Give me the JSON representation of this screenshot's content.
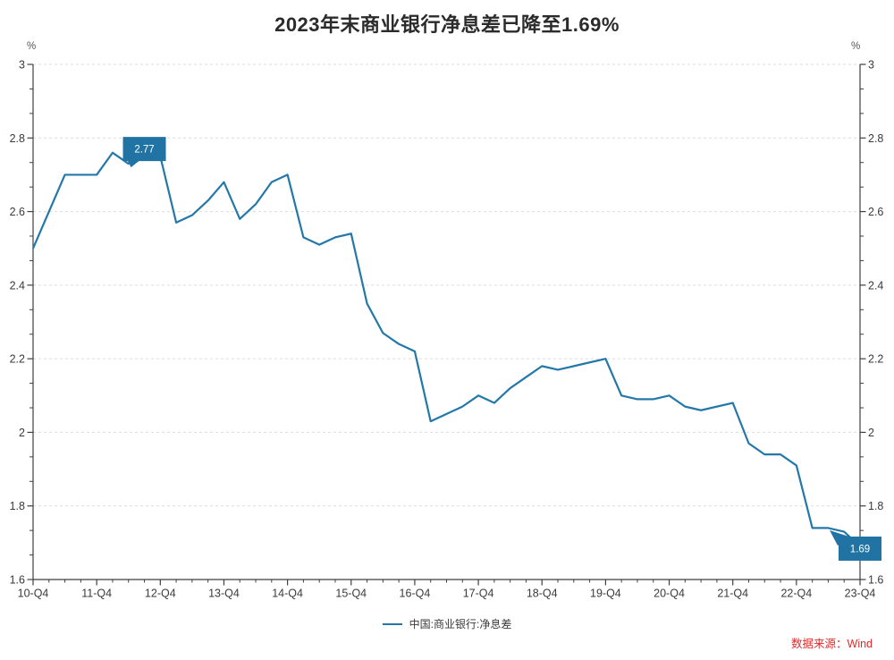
{
  "header": {
    "title": "2023年末商业银行净息差已降至1.69%"
  },
  "axes": {
    "y_unit_left": "%",
    "y_unit_right": "%"
  },
  "legend": {
    "label": "中国:商业银行:净息差"
  },
  "footer": {
    "source": "数据来源：Wind"
  },
  "colors": {
    "line": "#2478a9",
    "annotation_box": "#2173a4",
    "annotation_text": "#ffffff",
    "grid": "#dcdcdc",
    "axis": "#3f3f3f",
    "tick_label": "#3a3a3a",
    "title": "#2b2b2b",
    "source_text": "#e02c2c"
  },
  "chart_data": {
    "type": "line",
    "title": "2023年末商业银行净息差已降至1.69%",
    "y_unit": "%",
    "ylim": [
      1.6,
      3.0
    ],
    "grid": "horizontal-dashed",
    "legend_position": "bottom-center",
    "categories": [
      "10-Q4",
      "11-Q1",
      "11-Q2",
      "11-Q3",
      "11-Q4",
      "12-Q1",
      "12-Q2",
      "12-Q3",
      "12-Q4",
      "13-Q1",
      "13-Q2",
      "13-Q3",
      "13-Q4",
      "14-Q1",
      "14-Q2",
      "14-Q3",
      "14-Q4",
      "15-Q1",
      "15-Q2",
      "15-Q3",
      "15-Q4",
      "16-Q1",
      "16-Q2",
      "16-Q3",
      "16-Q4",
      "17-Q1",
      "17-Q2",
      "17-Q3",
      "17-Q4",
      "18-Q1",
      "18-Q2",
      "18-Q3",
      "18-Q4",
      "19-Q1",
      "19-Q2",
      "19-Q3",
      "19-Q4",
      "20-Q1",
      "20-Q2",
      "20-Q3",
      "20-Q4",
      "21-Q1",
      "21-Q2",
      "21-Q3",
      "21-Q4",
      "22-Q1",
      "22-Q2",
      "22-Q3",
      "22-Q4",
      "23-Q1",
      "23-Q2",
      "23-Q3",
      "23-Q4"
    ],
    "series": [
      {
        "name": "中国:商业银行:净息差",
        "values": [
          2.5,
          2.6,
          2.7,
          2.7,
          2.7,
          2.76,
          2.73,
          2.77,
          2.75,
          2.57,
          2.59,
          2.63,
          2.68,
          2.58,
          2.62,
          2.68,
          2.7,
          2.53,
          2.51,
          2.53,
          2.54,
          2.35,
          2.27,
          2.24,
          2.22,
          2.03,
          2.05,
          2.07,
          2.1,
          2.08,
          2.12,
          2.15,
          2.18,
          2.17,
          2.18,
          2.19,
          2.2,
          2.1,
          2.09,
          2.09,
          2.1,
          2.07,
          2.06,
          2.07,
          2.08,
          1.97,
          1.94,
          1.94,
          1.91,
          1.74,
          1.74,
          1.73,
          1.69
        ]
      }
    ],
    "x_tick_labels": [
      "10-Q4",
      "11-Q4",
      "12-Q4",
      "13-Q4",
      "14-Q4",
      "15-Q4",
      "16-Q4",
      "17-Q4",
      "18-Q4",
      "19-Q4",
      "20-Q4",
      "21-Q4",
      "22-Q4",
      "23-Q4"
    ],
    "y_ticks": [
      {
        "value": 3.0,
        "label": "3"
      },
      {
        "value": 2.8,
        "label": "2.8"
      },
      {
        "value": 2.6,
        "label": "2.6"
      },
      {
        "value": 2.4,
        "label": "2.4"
      },
      {
        "value": 2.2,
        "label": "2.2"
      },
      {
        "value": 2.0,
        "label": "2"
      },
      {
        "value": 1.8,
        "label": "1.8"
      },
      {
        "value": 1.6,
        "label": "1.6"
      }
    ],
    "annotations": [
      {
        "index": 7,
        "label": "2.77",
        "tail": "bottom-left"
      },
      {
        "index": 52,
        "label": "1.69",
        "tail": "top-left"
      }
    ]
  }
}
